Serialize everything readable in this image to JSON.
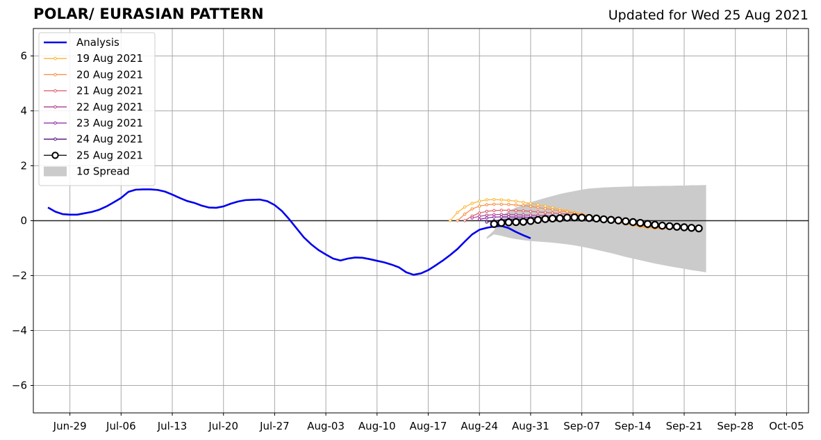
{
  "header": {
    "title": "POLAR/ EURASIAN  PATTERN",
    "updated": "Updated for Wed 25 Aug 2021"
  },
  "chart_data": {
    "type": "line",
    "title": "POLAR/ EURASIAN  PATTERN",
    "subtitle": "Updated for Wed 25 Aug 2021",
    "xlabel": "",
    "ylabel": "",
    "ylim": [
      -7,
      7
    ],
    "xlim": [
      "2021-06-24",
      "2021-10-08"
    ],
    "yticks": [
      -6,
      -4,
      -2,
      0,
      2,
      4,
      6
    ],
    "ytick_labels": [
      "−6",
      "−4",
      "−2",
      "0",
      "2",
      "4",
      "6"
    ],
    "xticks": [
      "2021-06-29",
      "2021-07-06",
      "2021-07-13",
      "2021-07-20",
      "2021-07-27",
      "2021-08-03",
      "2021-08-10",
      "2021-08-17",
      "2021-08-24",
      "2021-08-31",
      "2021-09-07",
      "2021-09-14",
      "2021-09-21",
      "2021-09-28",
      "2021-10-05"
    ],
    "xtick_labels": [
      "Jun-29",
      "Jul-06",
      "Jul-13",
      "Jul-20",
      "Jul-27",
      "Aug-03",
      "Aug-10",
      "Aug-17",
      "Aug-24",
      "Aug-31",
      "Sep-07",
      "Sep-14",
      "Sep-21",
      "Sep-28",
      "Oct-05"
    ],
    "grid": true,
    "legend_position": "top-left",
    "series": [
      {
        "name": "Analysis",
        "color": "#0000ee",
        "start": "2021-06-26",
        "values": [
          0.48,
          0.33,
          0.24,
          0.22,
          0.22,
          0.27,
          0.32,
          0.4,
          0.52,
          0.67,
          0.83,
          1.05,
          1.13,
          1.14,
          1.14,
          1.12,
          1.06,
          0.95,
          0.83,
          0.72,
          0.65,
          0.55,
          0.48,
          0.47,
          0.52,
          0.62,
          0.7,
          0.75,
          0.76,
          0.77,
          0.71,
          0.57,
          0.35,
          0.05,
          -0.28,
          -0.61,
          -0.86,
          -1.07,
          -1.23,
          -1.38,
          -1.45,
          -1.38,
          -1.34,
          -1.35,
          -1.4,
          -1.46,
          -1.52,
          -1.6,
          -1.7,
          -1.88,
          -1.97,
          -1.92,
          -1.8,
          -1.63,
          -1.45,
          -1.25,
          -1.03,
          -0.76,
          -0.5,
          -0.33,
          -0.26,
          -0.21,
          -0.19,
          -0.27,
          -0.41,
          -0.53,
          -0.64
        ]
      },
      {
        "name": "19 Aug 2021",
        "color": "#fbb42c",
        "start": "2021-08-20",
        "values": [
          0.0,
          0.3,
          0.5,
          0.63,
          0.71,
          0.76,
          0.77,
          0.76,
          0.74,
          0.71,
          0.67,
          0.63,
          0.58,
          0.53,
          0.48,
          0.42,
          0.36,
          0.3,
          0.24,
          0.18,
          0.12,
          0.06,
          0.0,
          -0.06,
          -0.12,
          -0.17,
          -0.22,
          -0.25,
          -0.28,
          -0.29,
          -0.3
        ]
      },
      {
        "name": "20 Aug 2021",
        "color": "#f8893a",
        "start": "2021-08-21",
        "values": [
          0.0,
          0.24,
          0.43,
          0.53,
          0.58,
          0.6,
          0.6,
          0.59,
          0.57,
          0.55,
          0.52,
          0.48,
          0.44,
          0.4,
          0.36,
          0.32,
          0.27,
          0.22,
          0.17,
          0.12,
          0.07,
          0.02,
          -0.04,
          -0.1,
          -0.15,
          -0.19,
          -0.23,
          -0.26,
          -0.28,
          -0.29
        ]
      },
      {
        "name": "21 Aug 2021",
        "color": "#dd5a63",
        "start": "2021-08-22",
        "values": [
          0.0,
          0.17,
          0.28,
          0.34,
          0.37,
          0.38,
          0.38,
          0.37,
          0.36,
          0.34,
          0.32,
          0.3,
          0.28,
          0.26,
          0.24,
          0.21,
          0.18,
          0.15,
          0.11,
          0.07,
          0.03,
          -0.02,
          -0.07,
          -0.12,
          -0.16,
          -0.19,
          -0.22,
          -0.24,
          -0.25
        ]
      },
      {
        "name": "22 Aug 2021",
        "color": "#b13a8e",
        "start": "2021-08-23",
        "values": [
          0.1,
          0.16,
          0.2,
          0.22,
          0.23,
          0.23,
          0.22,
          0.21,
          0.2,
          0.19,
          0.18,
          0.17,
          0.16,
          0.15,
          0.14,
          0.12,
          0.1,
          0.07,
          0.04,
          0.01,
          -0.03,
          -0.07,
          -0.11,
          -0.14,
          -0.17,
          -0.19,
          -0.21,
          -0.22
        ]
      },
      {
        "name": "23 Aug 2021",
        "color": "#8a1fa8",
        "start": "2021-08-24",
        "values": [
          0.05,
          0.1,
          0.13,
          0.14,
          0.14,
          0.13,
          0.13,
          0.12,
          0.12,
          0.11,
          0.11,
          0.1,
          0.1,
          0.09,
          0.08,
          0.07,
          0.05,
          0.03,
          0.01,
          -0.02,
          -0.05,
          -0.08,
          -0.11,
          -0.14,
          -0.16,
          -0.18,
          -0.19
        ]
      },
      {
        "name": "24 Aug 2021",
        "color": "#4b0c7e",
        "start": "2021-08-25",
        "values": [
          -0.05,
          0.0,
          0.03,
          0.05,
          0.06,
          0.06,
          0.06,
          0.06,
          0.06,
          0.06,
          0.06,
          0.06,
          0.06,
          0.06,
          0.05,
          0.04,
          0.03,
          0.01,
          -0.01,
          -0.03,
          -0.06,
          -0.09,
          -0.12,
          -0.14,
          -0.16,
          -0.17
        ]
      },
      {
        "name": "25 Aug 2021",
        "color": "#000000",
        "start": "2021-08-26",
        "values": [
          -0.12,
          -0.08,
          -0.06,
          -0.05,
          -0.04,
          -0.01,
          0.03,
          0.06,
          0.08,
          0.09,
          0.11,
          0.12,
          0.11,
          0.1,
          0.08,
          0.05,
          0.03,
          0.01,
          -0.02,
          -0.05,
          -0.08,
          -0.12,
          -0.15,
          -0.18,
          -0.2,
          -0.22,
          -0.24,
          -0.26,
          -0.28
        ]
      }
    ],
    "spread": {
      "name": "1σ Spread",
      "color": "#cbcbcb",
      "start": "2021-08-25",
      "upper": [
        -0.6,
        -0.35,
        0.15,
        0.35,
        0.48,
        0.58,
        0.67,
        0.75,
        0.83,
        0.9,
        0.97,
        1.03,
        1.08,
        1.13,
        1.17,
        1.19,
        1.21,
        1.22,
        1.23,
        1.24,
        1.25,
        1.25,
        1.26,
        1.26,
        1.27,
        1.27,
        1.28,
        1.28,
        1.29,
        1.29,
        1.3
      ],
      "lower": [
        -0.66,
        -0.5,
        -0.55,
        -0.62,
        -0.67,
        -0.71,
        -0.74,
        -0.76,
        -0.78,
        -0.8,
        -0.83,
        -0.86,
        -0.9,
        -0.95,
        -1.0,
        -1.06,
        -1.12,
        -1.18,
        -1.25,
        -1.32,
        -1.38,
        -1.44,
        -1.5,
        -1.56,
        -1.61,
        -1.66,
        -1.71,
        -1.75,
        -1.8,
        -1.84,
        -1.88
      ]
    },
    "legend": [
      "Analysis",
      "19 Aug 2021",
      "20 Aug 2021",
      "21 Aug 2021",
      "22 Aug 2021",
      "23 Aug 2021",
      "24 Aug 2021",
      "25 Aug 2021",
      "1σ Spread"
    ]
  }
}
